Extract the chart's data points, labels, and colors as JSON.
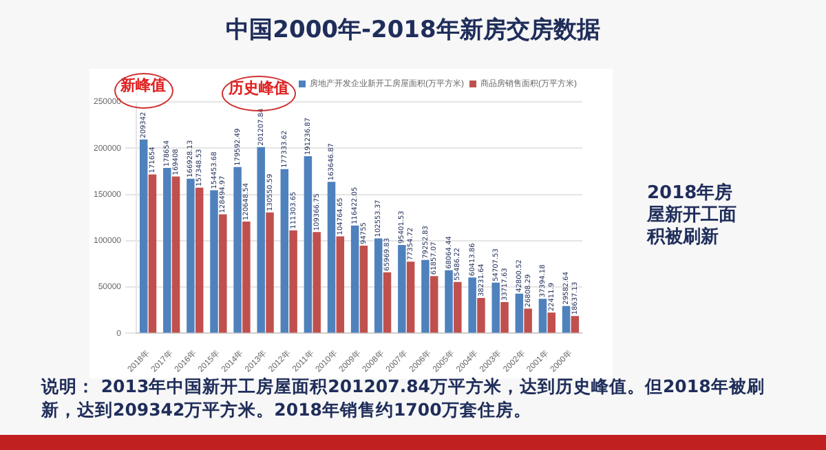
{
  "chart_data": {
    "type": "bar",
    "title": "中国2000年-2018年新房交房数据",
    "categories": [
      "2018年",
      "2017年",
      "2016年",
      "2015年",
      "2014年",
      "2013年",
      "2012年",
      "2011年",
      "2010年",
      "2009年",
      "2008年",
      "2007年",
      "2006年",
      "2005年",
      "2004年",
      "2003年",
      "2002年",
      "2001年",
      "2000年"
    ],
    "series": [
      {
        "name": "房地产开发企业新开工房屋面积(万平方米)",
        "color": "#4f81bd",
        "values": [
          209342,
          178654,
          166928.13,
          154453.68,
          179592.49,
          201207.84,
          177333.62,
          191236.87,
          163646.87,
          116422.05,
          102553.37,
          95401.53,
          79252.83,
          68064.44,
          60413.86,
          54707.53,
          42800.52,
          37394.18,
          29582.64
        ]
      },
      {
        "name": "商品房销售面积(万平方米)",
        "color": "#c0504d",
        "values": [
          171654,
          169408,
          157348.53,
          128494.97,
          120648.54,
          130550.59,
          111303.65,
          109366.75,
          104764.65,
          94755,
          65969.83,
          77354.72,
          61857.07,
          55486.22,
          38231.64,
          33717.63,
          26808.29,
          22411.9,
          18637.13
        ]
      }
    ],
    "ylim": [
      0,
      250000
    ],
    "yticks": [
      0,
      50000,
      100000,
      150000,
      200000,
      250000
    ],
    "grid": "y",
    "legend": "top right",
    "data_labels": true,
    "annotations": [
      "新峰值",
      "历史峰值",
      "2018年房屋新开工面积被刷新",
      "说明：  2013年中国新开工房屋面积201207.84万平方米，达到历史峰值。但2018年被刷新，达到209342万平方米。2018年销售约1700万套住房。"
    ]
  }
}
